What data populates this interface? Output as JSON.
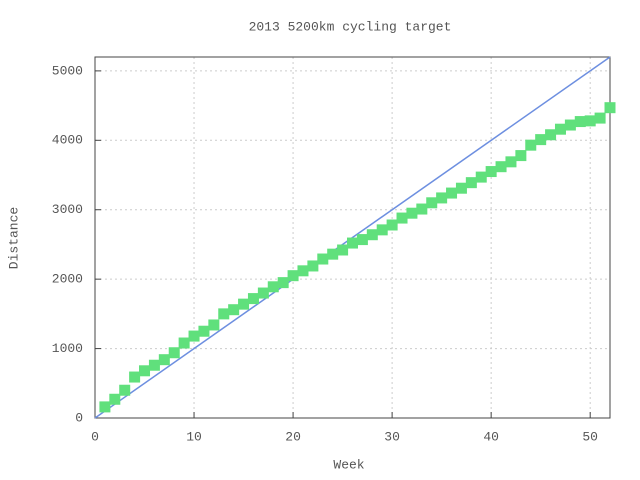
{
  "chart_data": {
    "type": "line",
    "title": "2013 5200km cycling target",
    "x_label": "Week",
    "y_label": "Distance",
    "xlim": [
      0,
      52
    ],
    "ylim": [
      0,
      5200
    ],
    "xticks": [
      0,
      10,
      20,
      30,
      40,
      50
    ],
    "yticks": [
      0,
      1000,
      2000,
      3000,
      4000,
      5000
    ],
    "grid": true,
    "series": [
      {
        "color": "#6d8fe0",
        "line": true,
        "marker": "none",
        "x": [
          0,
          52
        ],
        "values": [
          0,
          5200
        ]
      },
      {
        "color": "#60e07c",
        "line": false,
        "marker": "square",
        "x": [
          1,
          2,
          3,
          4,
          5,
          6,
          7,
          8,
          9,
          10,
          11,
          12,
          13,
          14,
          15,
          16,
          17,
          18,
          19,
          20,
          21,
          22,
          23,
          24,
          25,
          26,
          27,
          28,
          29,
          30,
          31,
          32,
          33,
          34,
          35,
          36,
          37,
          38,
          39,
          40,
          41,
          42,
          43,
          44,
          45,
          46,
          47,
          48,
          49,
          50,
          51,
          52
        ],
        "values": [
          160,
          270,
          400,
          590,
          680,
          760,
          840,
          940,
          1080,
          1180,
          1250,
          1340,
          1500,
          1560,
          1640,
          1720,
          1800,
          1890,
          1950,
          2050,
          2120,
          2190,
          2290,
          2360,
          2420,
          2520,
          2570,
          2640,
          2710,
          2780,
          2880,
          2950,
          3010,
          3100,
          3170,
          3240,
          3310,
          3390,
          3470,
          3550,
          3620,
          3690,
          3780,
          3930,
          4010,
          4080,
          4160,
          4220,
          4270,
          4280,
          4320,
          4470
        ]
      }
    ]
  }
}
